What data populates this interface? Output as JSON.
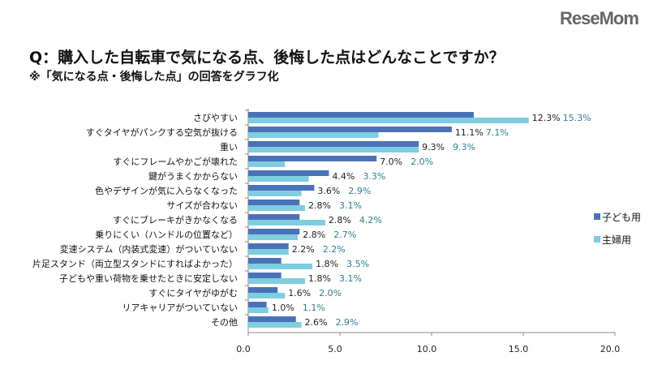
{
  "title": "Q：購入した自転車で気になる点、後悔した点はどんなことですか？",
  "subtitle": "※「気になる点・後悔した点」の回答をグラフ化",
  "watermark": "ReseMom",
  "chart_data": {
    "type": "bar",
    "orientation": "horizontal",
    "title": "Q：購入した自転車で気になる点、後悔した点はどんなことですか？",
    "subtitle": "※「気になる点・後悔した点」の回答をグラフ化",
    "categories": [
      "さびやすい",
      "すぐタイヤがパンクする空気が抜ける",
      "重い",
      "すぐにフレームやかごが壊れた",
      "鍵がうまくかからない",
      "色やデザインが気に入らなくなった",
      "サイズが合わない",
      "すぐにブレーキがきかなくなる",
      "乗りにくい（ハンドルの位置など）",
      "変速システム（内装式変速）がついていない",
      "片足スタンド（両立型スタンドにすればよかった）",
      "子どもや重い荷物を乗せたときに安定しない",
      "すぐにタイヤがゆがむ",
      "リアキャリアがついていない",
      "その他"
    ],
    "series": [
      {
        "name": "子ども用",
        "color": "#4a72b8",
        "values": [
          12.3,
          11.1,
          9.3,
          7.0,
          4.4,
          3.6,
          2.8,
          2.8,
          2.8,
          2.2,
          1.8,
          1.8,
          1.6,
          1.0,
          2.6
        ]
      },
      {
        "name": "主婦用",
        "color": "#7fcde0",
        "values": [
          15.3,
          7.1,
          9.3,
          2.0,
          3.3,
          2.9,
          3.1,
          4.2,
          2.7,
          2.2,
          3.5,
          3.1,
          2.0,
          1.1,
          2.9
        ]
      }
    ],
    "xlim": [
      0,
      20
    ],
    "xticks": [
      "0.0",
      "5.0",
      "10.0",
      "15.0",
      "20.0"
    ],
    "value_suffix": "%",
    "grid": false,
    "legend": "right"
  }
}
